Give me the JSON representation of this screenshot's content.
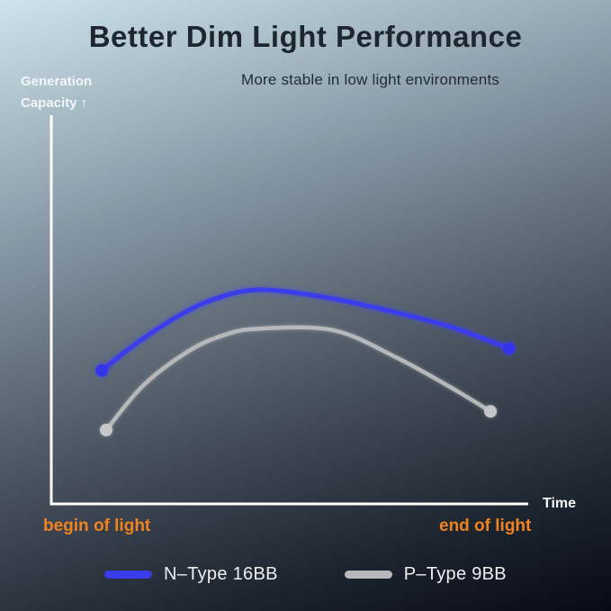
{
  "page_title": "Better Dim Light Performance",
  "colors": {
    "title_text": "#1e272f",
    "subtitle_text": "#232c34",
    "axis_line": "#ffffff",
    "axis_label_text": "#f2f5f7",
    "tick_label_orange": "#ee8320",
    "legend_label_text": "#eceff2",
    "n_type_blue": "#3b3cea",
    "p_type_gray": "#b6b8ba",
    "background_top": "#cde4ec",
    "background_bottom": "#060b16"
  },
  "chart_data": {
    "type": "line",
    "title": "Better Dim Light Performance",
    "subtitle": "More stable in low light environments",
    "ylabel": "Generation Capacity ↑",
    "ylabel_line1": "Generation",
    "ylabel_line2": "Capacity ↑",
    "xlabel": "Time",
    "x_tick_labels": [
      "begin of light",
      "end of light"
    ],
    "grid": false,
    "legend_position": "bottom",
    "axis_ranges_note": "qualitative axes, no numeric ticks; x from begin of light to end of light, y is relative generation capacity 0-1",
    "series": [
      {
        "name": "N–Type 16BB",
        "color": "#3b3cea",
        "marker_color": "#3434ea",
        "stroke_width": 5,
        "marker": "endpoints",
        "points": [
          [
            0.106,
            0.343
          ],
          [
            0.175,
            0.41
          ],
          [
            0.27,
            0.486
          ],
          [
            0.345,
            0.528
          ],
          [
            0.436,
            0.551
          ],
          [
            0.572,
            0.532
          ],
          [
            0.704,
            0.498
          ],
          [
            0.836,
            0.456
          ],
          [
            0.96,
            0.4
          ]
        ]
      },
      {
        "name": "P–Type 9BB",
        "color": "#b6b8ba",
        "marker_color": "#c6c7c8",
        "stroke_width": 4.5,
        "marker": "endpoints",
        "points": [
          [
            0.115,
            0.19
          ],
          [
            0.194,
            0.306
          ],
          [
            0.289,
            0.394
          ],
          [
            0.364,
            0.435
          ],
          [
            0.436,
            0.451
          ],
          [
            0.591,
            0.447
          ],
          [
            0.723,
            0.377
          ],
          [
            0.836,
            0.301
          ],
          [
            0.921,
            0.238
          ]
        ]
      }
    ]
  }
}
